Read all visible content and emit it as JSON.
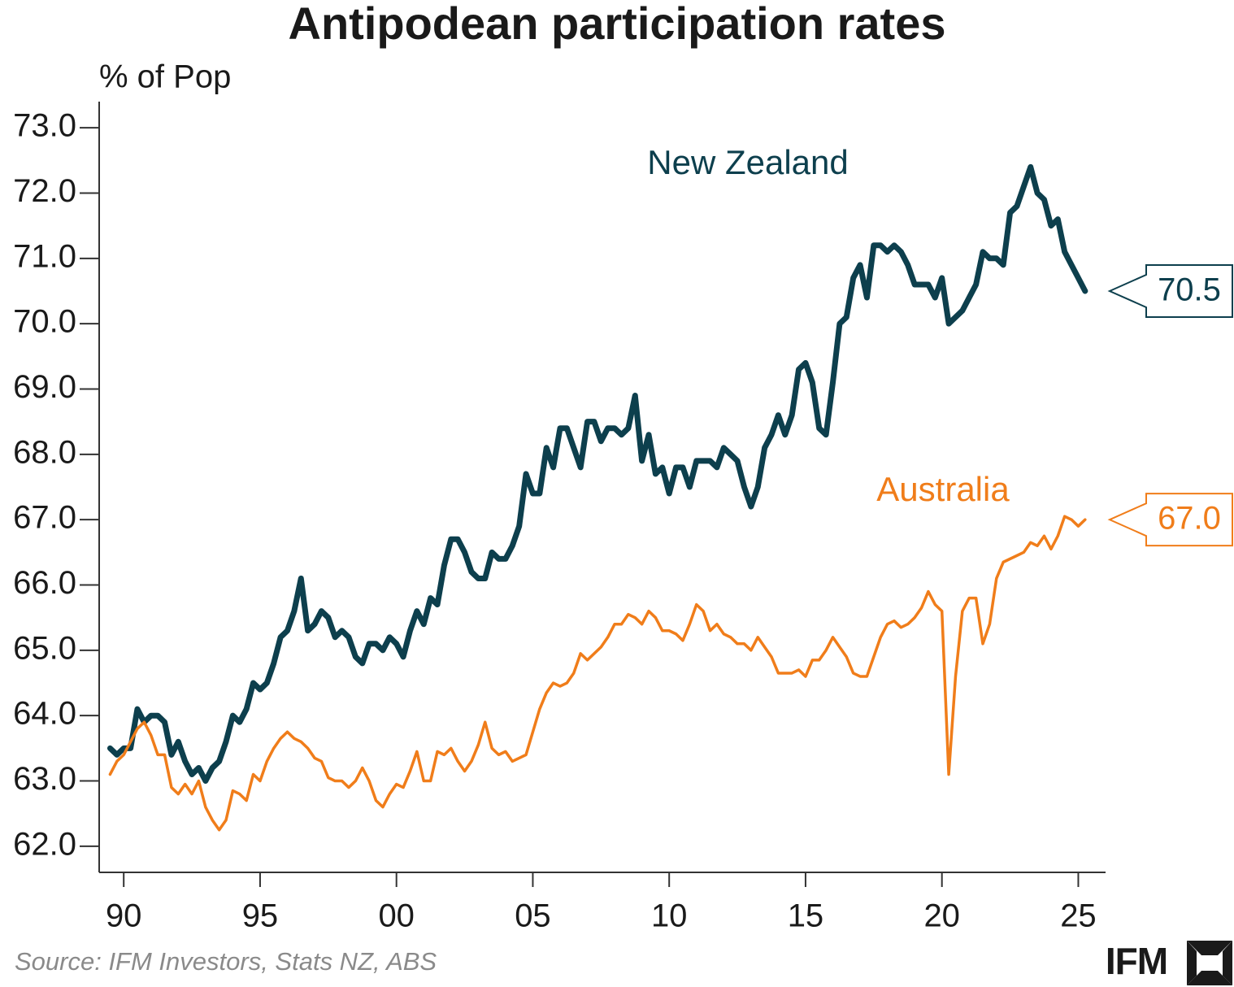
{
  "chart_data": {
    "type": "line",
    "title": "Antipodean participation rates",
    "y_axis_label": "% of Pop",
    "source": "Source: IFM Investors, Stats NZ, ABS",
    "logo": "IFM",
    "xlim": [
      1989.1,
      2026
    ],
    "ylim": [
      61.6,
      73.4
    ],
    "xticks": [
      {
        "value": 1990,
        "label": "90"
      },
      {
        "value": 1995,
        "label": "95"
      },
      {
        "value": 2000,
        "label": "00"
      },
      {
        "value": 2005,
        "label": "05"
      },
      {
        "value": 2010,
        "label": "10"
      },
      {
        "value": 2015,
        "label": "15"
      },
      {
        "value": 2020,
        "label": "20"
      },
      {
        "value": 2025,
        "label": "25"
      }
    ],
    "yticks": [
      {
        "value": 62,
        "label": "62.0"
      },
      {
        "value": 63,
        "label": "63.0"
      },
      {
        "value": 64,
        "label": "64.0"
      },
      {
        "value": 65,
        "label": "65.0"
      },
      {
        "value": 66,
        "label": "66.0"
      },
      {
        "value": 67,
        "label": "67.0"
      },
      {
        "value": 68,
        "label": "68.0"
      },
      {
        "value": 69,
        "label": "69.0"
      },
      {
        "value": 70,
        "label": "70.0"
      },
      {
        "value": 71,
        "label": "71.0"
      },
      {
        "value": 72,
        "label": "72.0"
      },
      {
        "value": 73,
        "label": "73.0"
      }
    ],
    "x": [
      1989.5,
      1989.75,
      1990,
      1990.25,
      1990.5,
      1990.75,
      1991,
      1991.25,
      1991.5,
      1991.75,
      1992,
      1992.25,
      1992.5,
      1992.75,
      1993,
      1993.25,
      1993.5,
      1993.75,
      1994,
      1994.25,
      1994.5,
      1994.75,
      1995,
      1995.25,
      1995.5,
      1995.75,
      1996,
      1996.25,
      1996.5,
      1996.75,
      1997,
      1997.25,
      1997.5,
      1997.75,
      1998,
      1998.25,
      1998.5,
      1998.75,
      1999,
      1999.25,
      1999.5,
      1999.75,
      2000,
      2000.25,
      2000.5,
      2000.75,
      2001,
      2001.25,
      2001.5,
      2001.75,
      2002,
      2002.25,
      2002.5,
      2002.75,
      2003,
      2003.25,
      2003.5,
      2003.75,
      2004,
      2004.25,
      2004.5,
      2004.75,
      2005,
      2005.25,
      2005.5,
      2005.75,
      2006,
      2006.25,
      2006.5,
      2006.75,
      2007,
      2007.25,
      2007.5,
      2007.75,
      2008,
      2008.25,
      2008.5,
      2008.75,
      2009,
      2009.25,
      2009.5,
      2009.75,
      2010,
      2010.25,
      2010.5,
      2010.75,
      2011,
      2011.25,
      2011.5,
      2011.75,
      2012,
      2012.25,
      2012.5,
      2012.75,
      2013,
      2013.25,
      2013.5,
      2013.75,
      2014,
      2014.25,
      2014.5,
      2014.75,
      2015,
      2015.25,
      2015.5,
      2015.75,
      2016,
      2016.25,
      2016.5,
      2016.75,
      2017,
      2017.25,
      2017.5,
      2017.75,
      2018,
      2018.25,
      2018.5,
      2018.75,
      2019,
      2019.25,
      2019.5,
      2019.75,
      2020,
      2020.25,
      2020.5,
      2020.75,
      2021,
      2021.25,
      2021.5,
      2021.75,
      2022,
      2022.25,
      2022.5,
      2022.75,
      2023,
      2023.25,
      2023.5,
      2023.75,
      2024,
      2024.25,
      2024.5,
      2024.75,
      2025,
      2025.25
    ],
    "series": [
      {
        "name": "New Zealand",
        "color": "#0d3f4d",
        "values": [
          63.5,
          63.4,
          63.5,
          63.5,
          64.1,
          63.9,
          64.0,
          64.0,
          63.9,
          63.4,
          63.6,
          63.3,
          63.1,
          63.2,
          63.0,
          63.2,
          63.3,
          63.6,
          64.0,
          63.9,
          64.1,
          64.5,
          64.4,
          64.5,
          64.8,
          65.2,
          65.3,
          65.6,
          66.1,
          65.3,
          65.4,
          65.6,
          65.5,
          65.2,
          65.3,
          65.2,
          64.9,
          64.8,
          65.1,
          65.1,
          65.0,
          65.2,
          65.1,
          64.9,
          65.3,
          65.6,
          65.4,
          65.8,
          65.7,
          66.3,
          66.7,
          66.7,
          66.5,
          66.2,
          66.1,
          66.1,
          66.5,
          66.4,
          66.4,
          66.6,
          66.9,
          67.7,
          67.4,
          67.4,
          68.1,
          67.8,
          68.4,
          68.4,
          68.1,
          67.8,
          68.5,
          68.5,
          68.2,
          68.4,
          68.4,
          68.3,
          68.4,
          68.9,
          67.9,
          68.3,
          67.7,
          67.8,
          67.4,
          67.8,
          67.8,
          67.5,
          67.9,
          67.9,
          67.9,
          67.8,
          68.1,
          68.0,
          67.9,
          67.5,
          67.2,
          67.5,
          68.1,
          68.3,
          68.6,
          68.3,
          68.6,
          69.3,
          69.4,
          69.1,
          68.4,
          68.3,
          69.1,
          70.0,
          70.1,
          70.7,
          70.9,
          70.4,
          71.2,
          71.2,
          71.1,
          71.2,
          71.1,
          70.9,
          70.6,
          70.6,
          70.6,
          70.4,
          70.7,
          70.0,
          70.1,
          70.2,
          70.4,
          70.6,
          71.1,
          71.0,
          71.0,
          70.9,
          71.7,
          71.8,
          72.1,
          72.4,
          72.0,
          71.9,
          71.5,
          71.6,
          71.1,
          70.9,
          70.7,
          70.5
        ],
        "value_labels": [
          null,
          null,
          null,
          null,
          null,
          null,
          null,
          null,
          null,
          null,
          null,
          null,
          null,
          null,
          null,
          null,
          null,
          null,
          null,
          null,
          null,
          null,
          null,
          null,
          null,
          null,
          null,
          null,
          null,
          null,
          null,
          null,
          null,
          null,
          null,
          null,
          null,
          null,
          null,
          null,
          null,
          null,
          null,
          null,
          null,
          null,
          null,
          null,
          null,
          null,
          null,
          null,
          null,
          null,
          null,
          null,
          null,
          null,
          null,
          null,
          null,
          null,
          null,
          null,
          null,
          null,
          null,
          null,
          null,
          null,
          null,
          null,
          null,
          null,
          null,
          null,
          null,
          null,
          null,
          null,
          null,
          null,
          null,
          null,
          null,
          null,
          null,
          null,
          null,
          null,
          null,
          null,
          null,
          null,
          null,
          null,
          null,
          null,
          null,
          null,
          null,
          null,
          null,
          null,
          null,
          null,
          null,
          null,
          null,
          null,
          null,
          null,
          null,
          null,
          null,
          null,
          null,
          null,
          null,
          null,
          null,
          null,
          null,
          null,
          null,
          null,
          null,
          null,
          null,
          null,
          null,
          null,
          null,
          null,
          null,
          null,
          null,
          null,
          null,
          null,
          null,
          null,
          null,
          "70.5"
        ]
      },
      {
        "name": "Australia",
        "color": "#f07d1a",
        "values": [
          63.1,
          63.3,
          63.4,
          63.6,
          63.8,
          63.9,
          63.7,
          63.4,
          63.4,
          62.9,
          62.8,
          62.95,
          62.8,
          63.0,
          62.6,
          62.4,
          62.25,
          62.4,
          62.85,
          62.8,
          62.7,
          63.1,
          63.0,
          63.3,
          63.5,
          63.65,
          63.75,
          63.65,
          63.6,
          63.5,
          63.35,
          63.3,
          63.05,
          63.0,
          63.0,
          62.9,
          63.0,
          63.2,
          63.0,
          62.7,
          62.6,
          62.8,
          62.95,
          62.9,
          63.15,
          63.45,
          63.0,
          63.0,
          63.45,
          63.4,
          63.5,
          63.3,
          63.15,
          63.3,
          63.55,
          63.9,
          63.5,
          63.4,
          63.45,
          63.3,
          63.35,
          63.4,
          63.75,
          64.1,
          64.35,
          64.5,
          64.45,
          64.5,
          64.65,
          64.95,
          64.85,
          64.95,
          65.05,
          65.2,
          65.4,
          65.4,
          65.55,
          65.5,
          65.4,
          65.6,
          65.5,
          65.3,
          65.3,
          65.25,
          65.15,
          65.4,
          65.7,
          65.6,
          65.3,
          65.4,
          65.25,
          65.2,
          65.1,
          65.1,
          65.0,
          65.2,
          65.05,
          64.9,
          64.65,
          64.65,
          64.65,
          64.7,
          64.6,
          64.85,
          64.85,
          65.0,
          65.2,
          65.05,
          64.9,
          64.65,
          64.6,
          64.6,
          64.9,
          65.2,
          65.4,
          65.45,
          65.35,
          65.4,
          65.5,
          65.65,
          65.9,
          65.7,
          65.6,
          63.1,
          64.6,
          65.6,
          65.8,
          65.8,
          65.1,
          65.4,
          66.1,
          66.35,
          66.4,
          66.45,
          66.5,
          66.65,
          66.6,
          66.75,
          66.55,
          66.75,
          67.05,
          67.0,
          66.9,
          67.0
        ],
        "value_labels": [
          null,
          null,
          null,
          null,
          null,
          null,
          null,
          null,
          null,
          null,
          null,
          null,
          null,
          null,
          null,
          null,
          null,
          null,
          null,
          null,
          null,
          null,
          null,
          null,
          null,
          null,
          null,
          null,
          null,
          null,
          null,
          null,
          null,
          null,
          null,
          null,
          null,
          null,
          null,
          null,
          null,
          null,
          null,
          null,
          null,
          null,
          null,
          null,
          null,
          null,
          null,
          null,
          null,
          null,
          null,
          null,
          null,
          null,
          null,
          null,
          null,
          null,
          null,
          null,
          null,
          null,
          null,
          null,
          null,
          null,
          null,
          null,
          null,
          null,
          null,
          null,
          null,
          null,
          null,
          null,
          null,
          null,
          null,
          null,
          null,
          null,
          null,
          null,
          null,
          null,
          null,
          null,
          null,
          null,
          null,
          null,
          null,
          null,
          null,
          null,
          null,
          null,
          null,
          null,
          null,
          null,
          null,
          null,
          null,
          null,
          null,
          null,
          null,
          null,
          null,
          null,
          null,
          null,
          null,
          null,
          null,
          null,
          null,
          null,
          null,
          null,
          null,
          null,
          null,
          null,
          null,
          null,
          null,
          null,
          null,
          null,
          null,
          null,
          null,
          null,
          null,
          null,
          null,
          "67.0"
        ]
      }
    ]
  }
}
